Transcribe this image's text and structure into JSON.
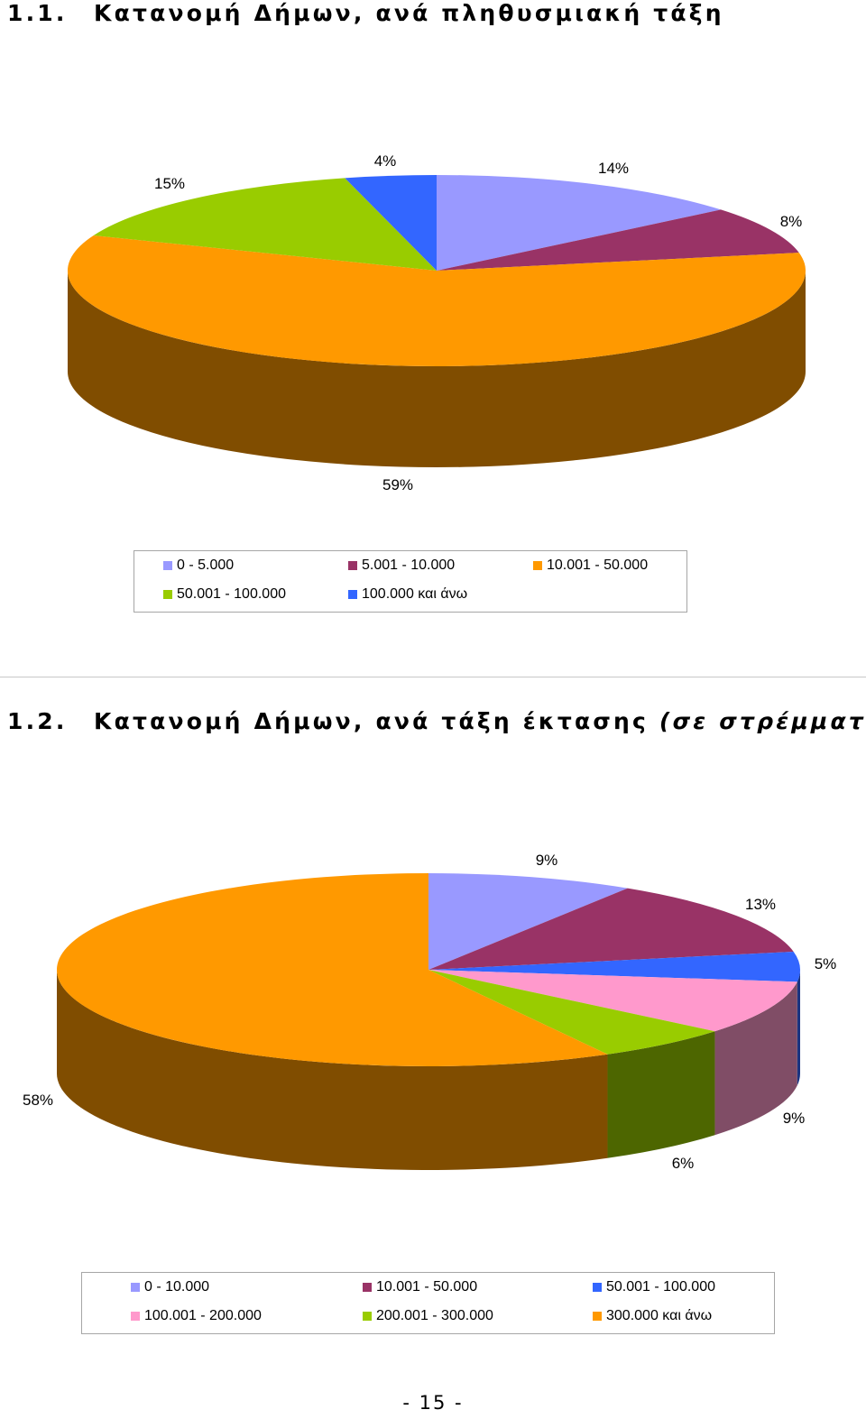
{
  "section1": {
    "number": "1.1.",
    "title": "Κατανομή Δήμων, ανά πληθυσμιακή τάξη"
  },
  "section2": {
    "number": "1.2.",
    "title": "Κατανομή Δήμων, ανά τάξη έκτασης",
    "title_paren": "(σε στρέμματα)"
  },
  "page_number": "- 15 -",
  "chart_data": [
    {
      "type": "pie",
      "style": "3d",
      "title": "",
      "legend_position": "bottom",
      "series": [
        {
          "name": "0 - 5.000",
          "value": 14,
          "label": "14%",
          "color": "#9999ff"
        },
        {
          "name": "5.001 - 10.000",
          "value": 8,
          "label": "8%",
          "color": "#993366"
        },
        {
          "name": "10.001 - 50.000",
          "value": 59,
          "label": "59%",
          "color": "#ff9900"
        },
        {
          "name": "50.001 - 100.000",
          "value": 15,
          "label": "15%",
          "color": "#99cc00"
        },
        {
          "name": "100.000 και άνω",
          "value": 4,
          "label": "4%",
          "color": "#3366ff"
        }
      ]
    },
    {
      "type": "pie",
      "style": "3d",
      "title": "",
      "legend_position": "bottom",
      "series": [
        {
          "name": "0 - 10.000",
          "value": 9,
          "label": "9%",
          "color": "#9999ff"
        },
        {
          "name": "10.001 - 50.000",
          "value": 13,
          "label": "13%",
          "color": "#993366"
        },
        {
          "name": "50.001 - 100.000",
          "value": 5,
          "label": "5%",
          "color": "#3366ff"
        },
        {
          "name": "100.001 - 200.000",
          "value": 9,
          "label": "9%",
          "color": "#ff99cc"
        },
        {
          "name": "200.001 - 300.000",
          "value": 6,
          "label": "6%",
          "color": "#99cc00"
        },
        {
          "name": "300.000 και άνω",
          "value": 58,
          "label": "58%",
          "color": "#ff9900"
        }
      ]
    }
  ]
}
